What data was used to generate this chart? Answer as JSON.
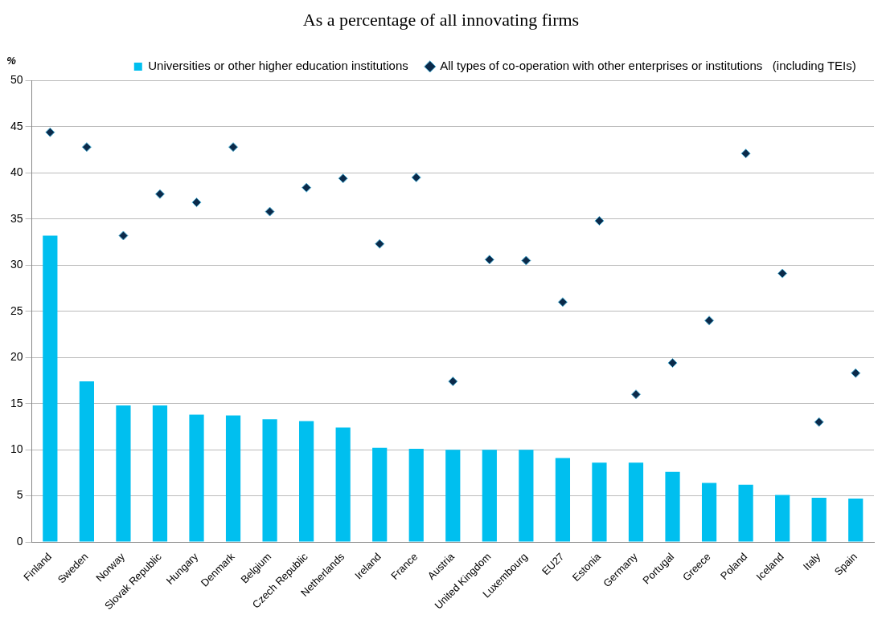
{
  "chart_data": {
    "type": "bar",
    "title": "As a percentage of all innovating firms",
    "ylabel": "%",
    "categories": [
      "Finland",
      "Sweden",
      "Norway",
      "Slovak Republic",
      "Hungary",
      "Denmark",
      "Belgium",
      "Czech Republic",
      "Netherlands",
      "Ireland",
      "France",
      "Austria",
      "United Kingdom",
      "Luxembourg",
      "EU27",
      "Estonia",
      "Germany",
      "Portugal",
      "Greece",
      "Poland",
      "Iceland",
      "Italy",
      "Spain"
    ],
    "series": [
      {
        "name": "Universities or other higher education institutions",
        "color": "#00bfef",
        "values": [
          33.2,
          17.4,
          14.8,
          14.8,
          13.8,
          13.7,
          13.3,
          13.1,
          12.4,
          10.2,
          10.1,
          10.0,
          10.0,
          10.0,
          9.1,
          8.6,
          8.6,
          7.6,
          6.4,
          6.2,
          5.1,
          4.8,
          4.7
        ]
      },
      {
        "name": "All types of co-operation with other enterprises or institutions   (including TEIs)",
        "type": "scatter",
        "color": "#0b2a4a",
        "marker": "diamond",
        "values": [
          44.4,
          42.8,
          33.2,
          37.7,
          36.8,
          42.8,
          35.8,
          38.4,
          39.4,
          32.3,
          39.5,
          17.4,
          30.6,
          30.5,
          26.0,
          34.8,
          16.0,
          19.4,
          24.0,
          42.1,
          29.1,
          13.0,
          18.3
        ]
      }
    ],
    "ylim": [
      0,
      50
    ],
    "yticks": [
      0,
      5,
      10,
      15,
      20,
      25,
      30,
      35,
      40,
      45,
      50
    ],
    "grid": "y",
    "legend": "top"
  }
}
